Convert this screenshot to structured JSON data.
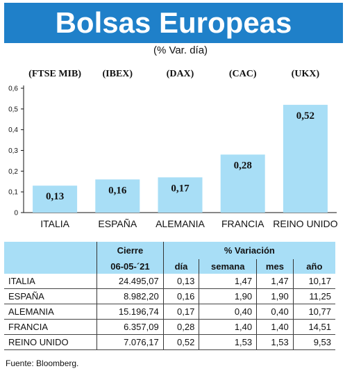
{
  "title": "Bolsas Europeas",
  "subtitle": "(% Var. día)",
  "chart_data": {
    "type": "bar",
    "categories": [
      "ITALIA",
      "ESPAÑA",
      "ALEMANIA",
      "FRANCIA",
      "REINO UNIDO"
    ],
    "index_labels": [
      "(FTSE MIB)",
      "(IBEX)",
      "(DAX)",
      "(CAC)",
      "(UKX)"
    ],
    "values": [
      0.13,
      0.16,
      0.17,
      0.28,
      0.52
    ],
    "value_labels": [
      "0,13",
      "0,16",
      "0,17",
      "0,28",
      "0,52"
    ],
    "ylim": [
      0,
      0.6
    ],
    "yticks": [
      0,
      0.1,
      0.2,
      0.3,
      0.4,
      0.5,
      0.6
    ],
    "ytick_labels": [
      "0",
      "0,1",
      "0,2",
      "0,3",
      "0,4",
      "0,5",
      "0,6"
    ],
    "bar_color": "#a8def6",
    "grid": false
  },
  "table": {
    "header_cierre": "Cierre",
    "header_variacion": "% Variación",
    "date": "06-05-´21",
    "columns": [
      "día",
      "semana",
      "mes",
      "año"
    ],
    "rows": [
      {
        "name": "ITALIA",
        "cierre": "24.495,07",
        "dia": "0,13",
        "semana": "1,47",
        "mes": "1,47",
        "anio": "10,17"
      },
      {
        "name": "ESPAÑA",
        "cierre": "8.982,20",
        "dia": "0,16",
        "semana": "1,90",
        "mes": "1,90",
        "anio": "11,25"
      },
      {
        "name": "ALEMANIA",
        "cierre": "15.196,74",
        "dia": "0,17",
        "semana": "0,40",
        "mes": "0,40",
        "anio": "10,77"
      },
      {
        "name": "FRANCIA",
        "cierre": "6.357,09",
        "dia": "0,28",
        "semana": "1,40",
        "mes": "1,40",
        "anio": "14,51"
      },
      {
        "name": "REINO UNIDO",
        "cierre": "7.076,17",
        "dia": "0,52",
        "semana": "1,53",
        "mes": "1,53",
        "anio": "9,53"
      }
    ]
  },
  "source": "Fuente: Bloomberg.",
  "colors": {
    "banner": "#1f80c9",
    "accent": "#a8def6"
  }
}
